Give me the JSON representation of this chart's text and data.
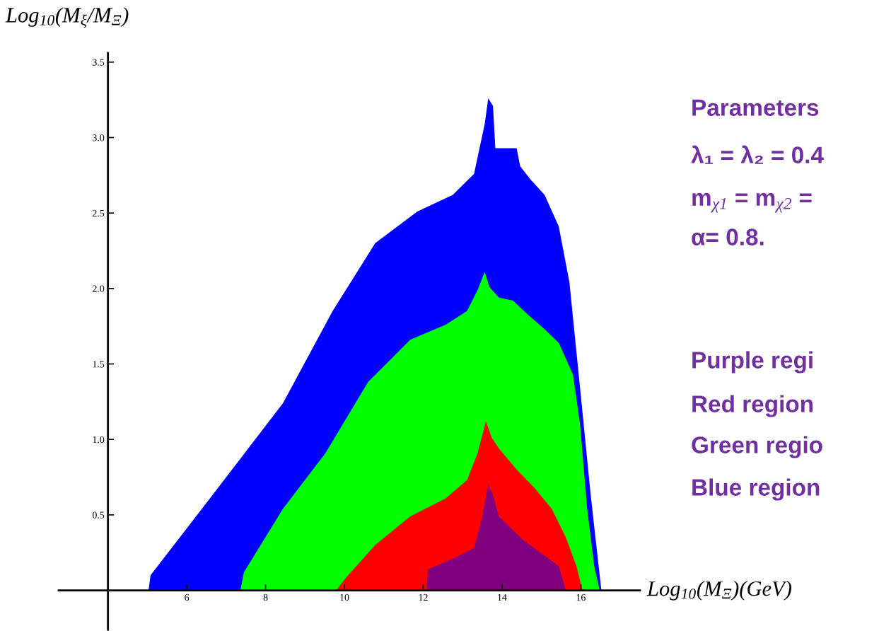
{
  "chart_data": {
    "type": "area",
    "xlabel": "Log$_{10}$(M$_{Ξ}$)(GeV)",
    "ylabel": "Log$_{10}$(M$_{ξ}$/M$_{Ξ}$)",
    "xlim": [
      2.75,
      17.5
    ],
    "ylim": [
      -0.26,
      3.56
    ],
    "xticks": [
      6,
      8,
      10,
      12,
      14,
      16
    ],
    "yticks": [
      0.5,
      {
        "value": 1,
        "label": "1.0"
      },
      1.5,
      {
        "value": 2,
        "label": "2.0"
      },
      2.5,
      {
        "value": 3,
        "label": "3.0"
      },
      3.5
    ],
    "grid": false,
    "legend": false,
    "series": [
      {
        "color": "#0000ff",
        "x": [
          5.03,
          5.08,
          6.65,
          8.44,
          9.7,
          10.78,
          11.85,
          12.75,
          13.29,
          13.56,
          13.65,
          13.77,
          13.83,
          14.37,
          14.46,
          14.73,
          15.08,
          15.44,
          15.71,
          15.98,
          16.25,
          16.43,
          16.52
        ],
        "values": [
          0,
          0.1,
          0.63,
          1.24,
          1.85,
          2.3,
          2.51,
          2.62,
          2.76,
          3.09,
          3.26,
          3.21,
          2.93,
          2.93,
          2.81,
          2.72,
          2.62,
          2.41,
          2.04,
          1.34,
          0.63,
          0.21,
          0
        ]
      },
      {
        "color": "#00ff00",
        "x": [
          7.36,
          7.45,
          8.44,
          9.52,
          10.6,
          11.67,
          12.57,
          13.11,
          13.38,
          13.56,
          13.68,
          13.92,
          14.28,
          14.64,
          15.08,
          15.44,
          15.8,
          15.98,
          16.16,
          16.34,
          16.48
        ],
        "values": [
          0,
          0.12,
          0.54,
          0.91,
          1.38,
          1.66,
          1.76,
          1.85,
          1.99,
          2.11,
          2.01,
          1.94,
          1.92,
          1.83,
          1.73,
          1.64,
          1.43,
          1.1,
          0.54,
          0.16,
          0
        ]
      },
      {
        "color": "#ff0000",
        "x": [
          9.79,
          10.06,
          10.78,
          11.67,
          12.57,
          13.11,
          13.38,
          13.59,
          13.74,
          13.92,
          14.37,
          14.82,
          15.26,
          15.62,
          15.89,
          16.04
        ],
        "values": [
          0,
          0.09,
          0.3,
          0.49,
          0.61,
          0.73,
          0.91,
          1.12,
          1.01,
          0.94,
          0.8,
          0.68,
          0.54,
          0.35,
          0.16,
          0
        ]
      },
      {
        "color": "#800080",
        "x": [
          12.09,
          12.12,
          12.75,
          13.29,
          13.5,
          13.65,
          13.77,
          13.92,
          14.55,
          15.08,
          15.44,
          15.62
        ],
        "values": [
          0,
          0.14,
          0.21,
          0.28,
          0.49,
          0.7,
          0.63,
          0.49,
          0.33,
          0.23,
          0.16,
          0
        ]
      }
    ],
    "annotations": [
      "Parameters",
      "λ₁ = λ₂ = 0.4",
      "m$_{χ1}$ = m$_{χ2}$ =",
      "α= 0.8.",
      "Purple regi",
      "Red region",
      "Green regio",
      "Blue region"
    ]
  }
}
